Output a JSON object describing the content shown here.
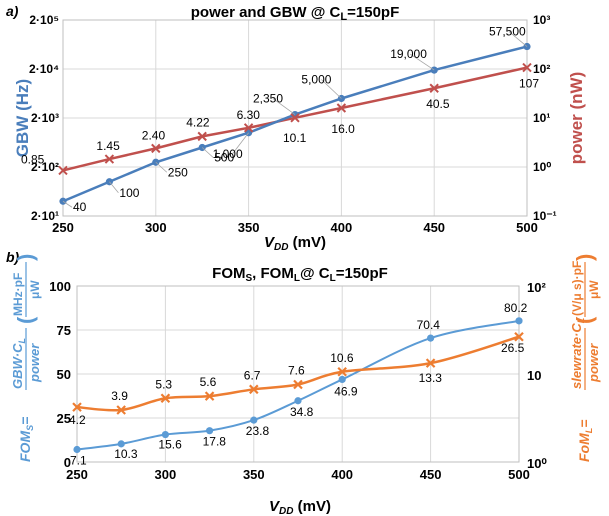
{
  "colors": {
    "blue": "#4A7EBB",
    "red": "#C0504D",
    "lightblue": "#5B9BD5",
    "orange": "#ED7D31",
    "grid": "#D9D9D9",
    "axis": "#000000"
  },
  "chart_data": [
    {
      "panel_label": "a)",
      "type": "line",
      "title": "power and GBW @ C",
      "title_sub": "L",
      "title_tail": "=150pF",
      "x": [
        250,
        275,
        300,
        325,
        350,
        375,
        400,
        450,
        500
      ],
      "xlabel": "V",
      "xlabel_sub": "DD",
      "xlabel_tail": " (mV)",
      "x_ticks": [
        "250",
        "300",
        "350",
        "400",
        "450",
        "500"
      ],
      "xlim": [
        250,
        500
      ],
      "grid": true,
      "y_left": {
        "label": "GBW  (Hz)",
        "scale": "log",
        "lim": [
          20,
          200000
        ],
        "ticks": [
          "2·10¹",
          "2·10²",
          "2·10³",
          "2·10⁴",
          "2·10⁵"
        ]
      },
      "y_right": {
        "label": "power (nW)",
        "scale": "log",
        "lim": [
          0.1,
          1000
        ],
        "ticks": [
          "10⁻¹",
          "10⁰",
          "10¹",
          "10²",
          "10³"
        ]
      },
      "series": [
        {
          "axis": "left",
          "marker": "circle",
          "values": [
            40,
            100,
            250,
            500,
            1000,
            2350,
            5000,
            19000,
            57500
          ],
          "labels": [
            "40",
            "100",
            "250",
            "500",
            "1,000",
            "2,350",
            "5,000",
            "19,000",
            "57,500"
          ]
        },
        {
          "axis": "right",
          "marker": "x",
          "values": [
            0.85,
            1.45,
            2.4,
            4.22,
            6.3,
            10.1,
            16.0,
            40.5,
            107
          ],
          "labels": [
            "0.85",
            "1.45",
            "2.40",
            "4.22",
            "6.30",
            "10.1",
            "16.0",
            "40.5",
            "107"
          ]
        }
      ]
    },
    {
      "panel_label": "b)",
      "type": "line",
      "title_parts": [
        "FOM",
        "S",
        ", FOM",
        "L",
        "@ C",
        "L",
        "=150pF"
      ],
      "x": [
        250,
        275,
        300,
        325,
        350,
        375,
        400,
        450,
        500
      ],
      "xlabel": "V",
      "xlabel_sub": "DD",
      "xlabel_tail": " (mV)",
      "x_ticks": [
        "250",
        "300",
        "350",
        "400",
        "450",
        "500"
      ],
      "xlim": [
        250,
        500
      ],
      "grid": true,
      "y_left": {
        "label_prefix": "FOM",
        "label_prefix_sub": "S",
        "label_eq": "=",
        "label_num": "GBW·C",
        "label_num_sub": "L",
        "label_den": "power",
        "label_unit_num": "MHz·pF",
        "label_unit_den": "μW",
        "paren_open": "(",
        "paren_close": ")",
        "scale": "linear",
        "lim": [
          0,
          100
        ],
        "ticks": [
          "0",
          "25",
          "50",
          "75",
          "100"
        ]
      },
      "y_right": {
        "label_prefix": "FoM",
        "label_prefix_sub": "L",
        "label_eq": "=",
        "label_num": "slewrate·C",
        "label_num_sub": "L",
        "label_den": "power",
        "label_unit_num": "(V/μ s)·pF",
        "label_unit_den": "μW",
        "paren_open": "(",
        "paren_close": ")",
        "scale": "log",
        "lim": [
          1,
          100
        ],
        "ticks": [
          "10⁰",
          "10",
          "10²"
        ]
      },
      "series": [
        {
          "axis": "left",
          "marker": "circle",
          "values": [
            7.1,
            10.3,
            15.6,
            17.8,
            23.8,
            34.8,
            46.9,
            70.4,
            80.2
          ],
          "labels": [
            "7.1",
            "10.3",
            "15.6",
            "17.8",
            "23.8",
            "34.8",
            "46.9",
            "70.4",
            "80.2"
          ]
        },
        {
          "axis": "right",
          "marker": "x",
          "values": [
            4.2,
            3.9,
            5.3,
            5.6,
            6.7,
            7.6,
            10.6,
            13.3,
            26.5
          ],
          "labels": [
            "4.2",
            "3.9",
            "5.3",
            "5.6",
            "6.7",
            "7.6",
            "10.6",
            "13.3",
            "26.5"
          ]
        }
      ]
    }
  ]
}
